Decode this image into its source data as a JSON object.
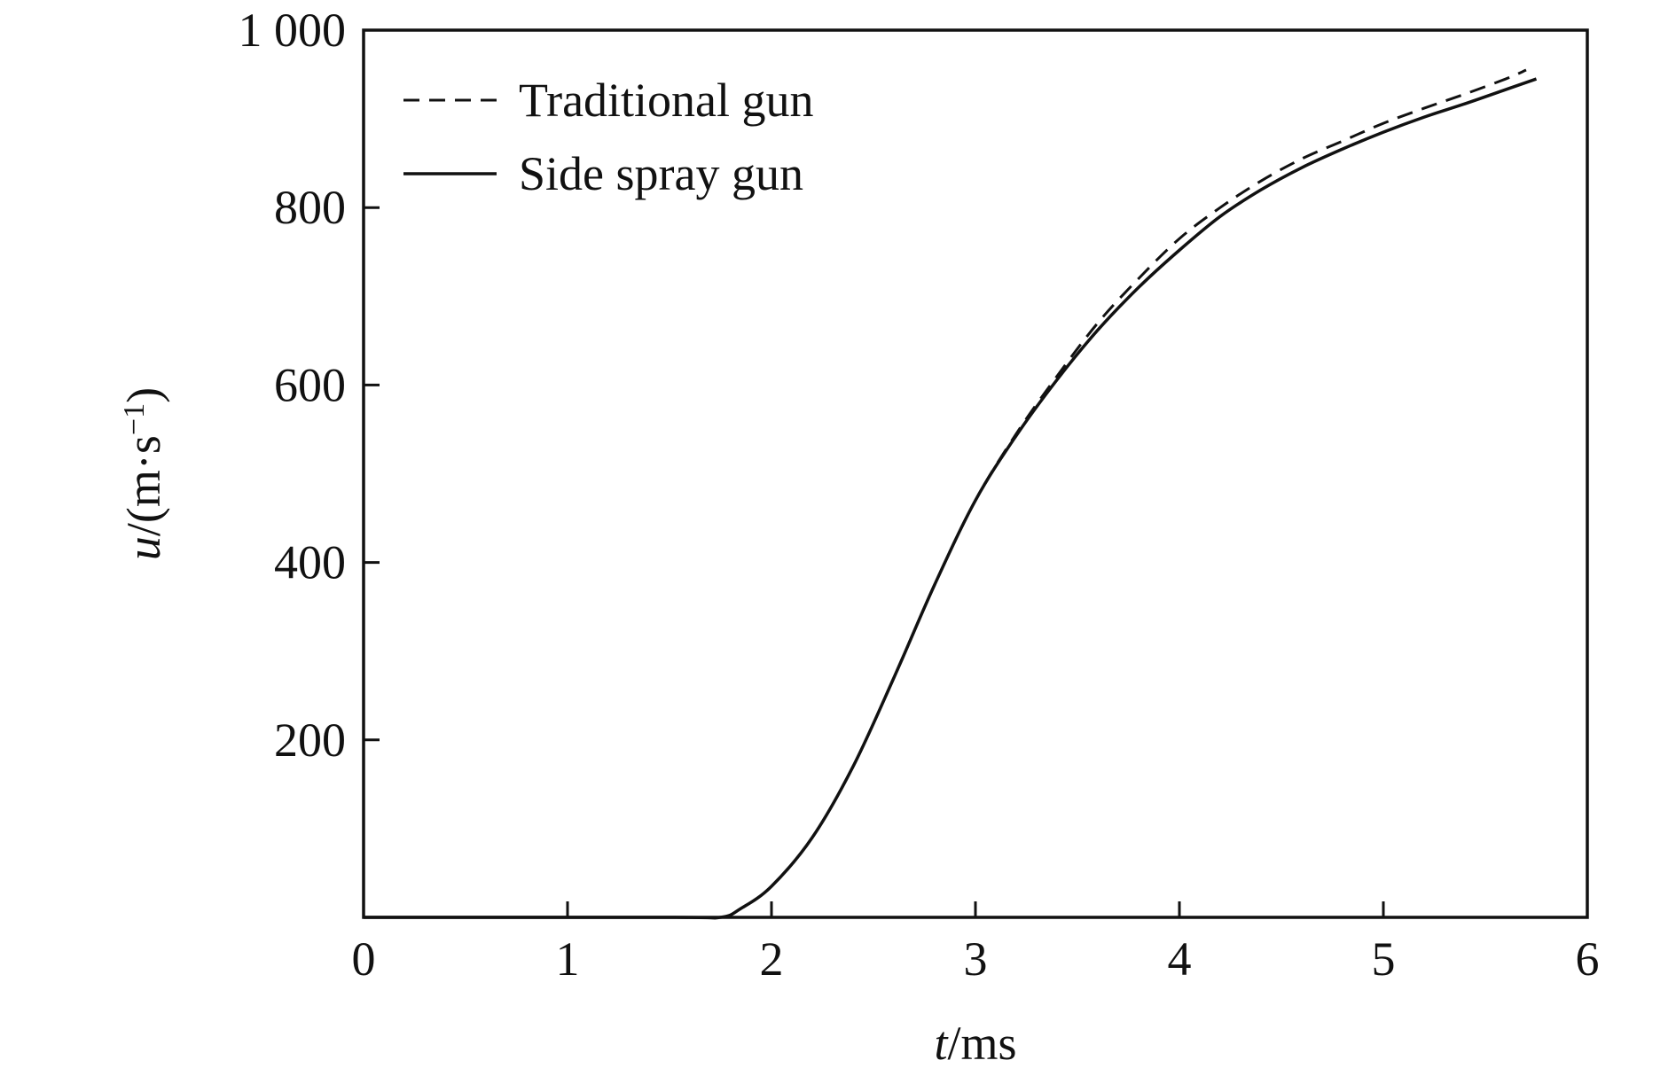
{
  "chart_data": {
    "type": "line",
    "xlabel_var": "t",
    "xlabel_unit": "/ms",
    "ylabel_var": "u",
    "ylabel_unit_pre": "/(m·s",
    "ylabel_unit_exp": "−1",
    "ylabel_unit_post": ")",
    "xlim": [
      0,
      6
    ],
    "ylim": [
      0,
      1000
    ],
    "x_ticks": [
      0,
      1,
      2,
      3,
      4,
      5,
      6
    ],
    "x_tick_labels": [
      "0",
      "1",
      "2",
      "3",
      "4",
      "5",
      "6"
    ],
    "y_ticks": [
      200,
      400,
      600,
      800,
      1000
    ],
    "y_tick_labels": [
      "200",
      "400",
      "600",
      "800",
      "1 000"
    ],
    "grid": false,
    "legend_position": "top-left",
    "series": [
      {
        "name": "Traditional gun",
        "style": "dashed",
        "color": "#111111",
        "points": [
          [
            0,
            0
          ],
          [
            1.5,
            0
          ],
          [
            1.75,
            0
          ],
          [
            1.85,
            10
          ],
          [
            2.0,
            35
          ],
          [
            2.2,
            90
          ],
          [
            2.4,
            170
          ],
          [
            2.6,
            270
          ],
          [
            2.8,
            375
          ],
          [
            3.0,
            470
          ],
          [
            3.2,
            545
          ],
          [
            3.4,
            610
          ],
          [
            3.6,
            670
          ],
          [
            3.8,
            720
          ],
          [
            4.0,
            765
          ],
          [
            4.2,
            800
          ],
          [
            4.4,
            830
          ],
          [
            4.6,
            855
          ],
          [
            4.8,
            875
          ],
          [
            5.0,
            895
          ],
          [
            5.2,
            912
          ],
          [
            5.4,
            928
          ],
          [
            5.6,
            945
          ],
          [
            5.7,
            955
          ]
        ]
      },
      {
        "name": "Side spray gun",
        "style": "solid",
        "color": "#111111",
        "points": [
          [
            0,
            0
          ],
          [
            1.5,
            0
          ],
          [
            1.75,
            0
          ],
          [
            1.85,
            10
          ],
          [
            2.0,
            35
          ],
          [
            2.2,
            90
          ],
          [
            2.4,
            170
          ],
          [
            2.6,
            270
          ],
          [
            2.8,
            375
          ],
          [
            3.0,
            470
          ],
          [
            3.2,
            543
          ],
          [
            3.4,
            606
          ],
          [
            3.6,
            662
          ],
          [
            3.8,
            710
          ],
          [
            4.0,
            752
          ],
          [
            4.2,
            790
          ],
          [
            4.4,
            820
          ],
          [
            4.6,
            845
          ],
          [
            4.8,
            866
          ],
          [
            5.0,
            885
          ],
          [
            5.2,
            902
          ],
          [
            5.4,
            917
          ],
          [
            5.6,
            933
          ],
          [
            5.75,
            945
          ]
        ]
      }
    ]
  }
}
